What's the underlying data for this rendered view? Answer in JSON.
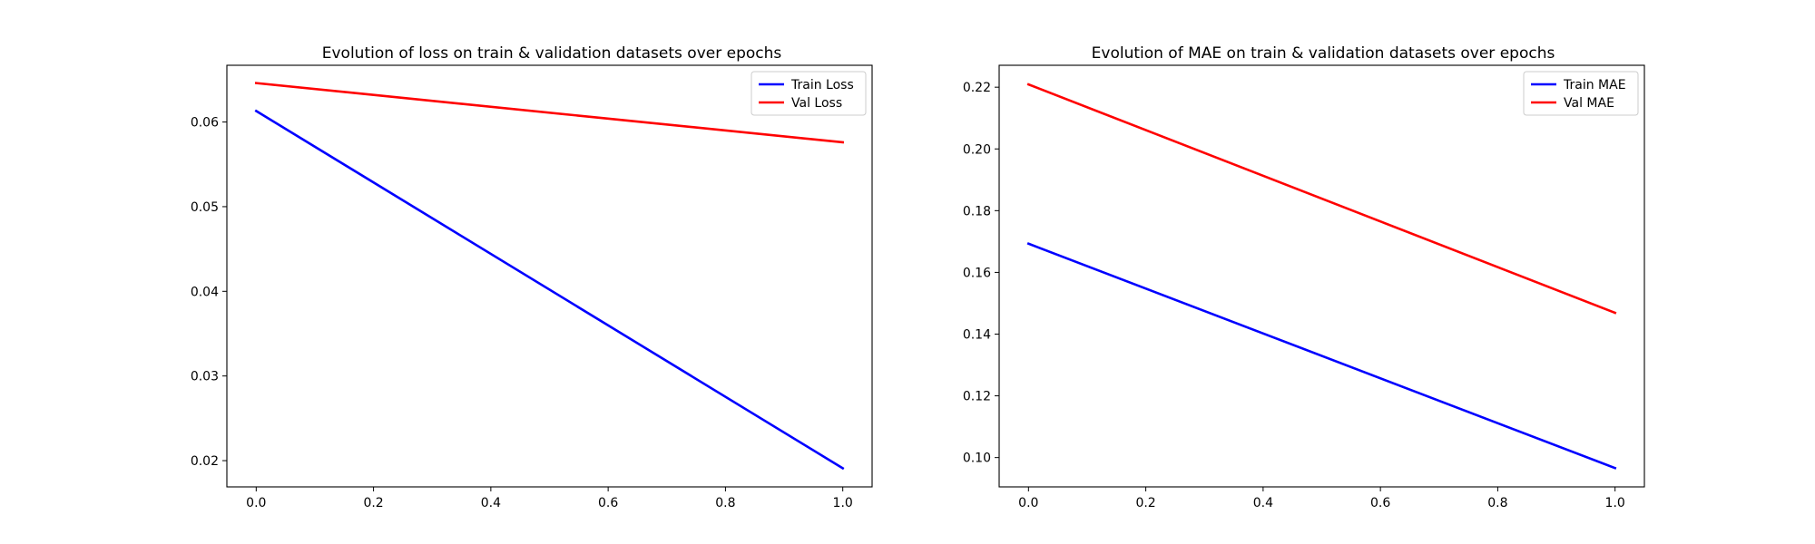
{
  "chart_data": [
    {
      "type": "line",
      "title": "Evolution of loss on train & validation datasets over epochs",
      "xlabel": "",
      "ylabel": "",
      "xlim": [
        -0.05,
        1.05
      ],
      "ylim": [
        0.0169,
        0.0667
      ],
      "xticks": [
        0.0,
        0.2,
        0.4,
        0.6,
        0.8,
        1.0
      ],
      "xtick_labels": [
        "0.0",
        "0.2",
        "0.4",
        "0.6",
        "0.8",
        "1.0"
      ],
      "yticks": [
        0.02,
        0.03,
        0.04,
        0.05,
        0.06
      ],
      "ytick_labels": [
        "0.02",
        "0.03",
        "0.04",
        "0.05",
        "0.06"
      ],
      "grid": false,
      "legend_position": "top-right",
      "x": [
        0.0,
        1.0
      ],
      "series": [
        {
          "name": "Train Loss",
          "color": "#0000ff",
          "values": [
            0.0613,
            0.0191
          ]
        },
        {
          "name": "Val Loss",
          "color": "#ff0000",
          "values": [
            0.0646,
            0.0576
          ]
        }
      ]
    },
    {
      "type": "line",
      "title": "Evolution of MAE on train & validation datasets over epochs",
      "xlabel": "",
      "ylabel": "",
      "xlim": [
        -0.05,
        1.05
      ],
      "ylim": [
        0.0905,
        0.2271
      ],
      "xticks": [
        0.0,
        0.2,
        0.4,
        0.6,
        0.8,
        1.0
      ],
      "xtick_labels": [
        "0.0",
        "0.2",
        "0.4",
        "0.6",
        "0.8",
        "1.0"
      ],
      "yticks": [
        0.1,
        0.12,
        0.14,
        0.16,
        0.18,
        0.2,
        0.22
      ],
      "ytick_labels": [
        "0.10",
        "0.12",
        "0.14",
        "0.16",
        "0.18",
        "0.20",
        "0.22"
      ],
      "grid": false,
      "legend_position": "top-right",
      "x": [
        0.0,
        1.0
      ],
      "series": [
        {
          "name": "Train MAE",
          "color": "#0000ff",
          "values": [
            0.1693,
            0.0966
          ]
        },
        {
          "name": "Val MAE",
          "color": "#ff0000",
          "values": [
            0.2209,
            0.1469
          ]
        }
      ]
    }
  ]
}
